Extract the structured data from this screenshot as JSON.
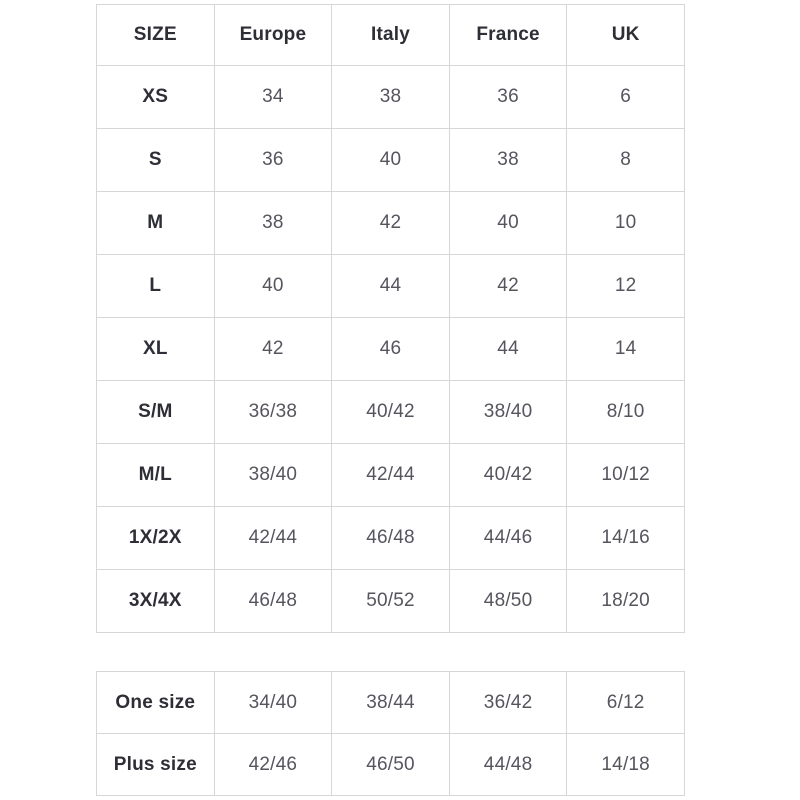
{
  "style": {
    "border_color": "#d6d6d6",
    "header_text_color": "#2e2e36",
    "value_text_color": "#55555e"
  },
  "table1": {
    "headers": [
      "SIZE",
      "Europe",
      "Italy",
      "France",
      "UK"
    ],
    "rows": [
      [
        "XS",
        "34",
        "38",
        "36",
        "6"
      ],
      [
        "S",
        "36",
        "40",
        "38",
        "8"
      ],
      [
        "M",
        "38",
        "42",
        "40",
        "10"
      ],
      [
        "L",
        "40",
        "44",
        "42",
        "12"
      ],
      [
        "XL",
        "42",
        "46",
        "44",
        "14"
      ],
      [
        "S/M",
        "36/38",
        "40/42",
        "38/40",
        "8/10"
      ],
      [
        "M/L",
        "38/40",
        "42/44",
        "40/42",
        "10/12"
      ],
      [
        "1X/2X",
        "42/44",
        "46/48",
        "44/46",
        "14/16"
      ],
      [
        "3X/4X",
        "46/48",
        "50/52",
        "48/50",
        "18/20"
      ]
    ]
  },
  "table2": {
    "rows": [
      [
        "One size",
        "34/40",
        "38/44",
        "36/42",
        "6/12"
      ],
      [
        "Plus size",
        "42/46",
        "46/50",
        "44/48",
        "14/18"
      ]
    ]
  }
}
